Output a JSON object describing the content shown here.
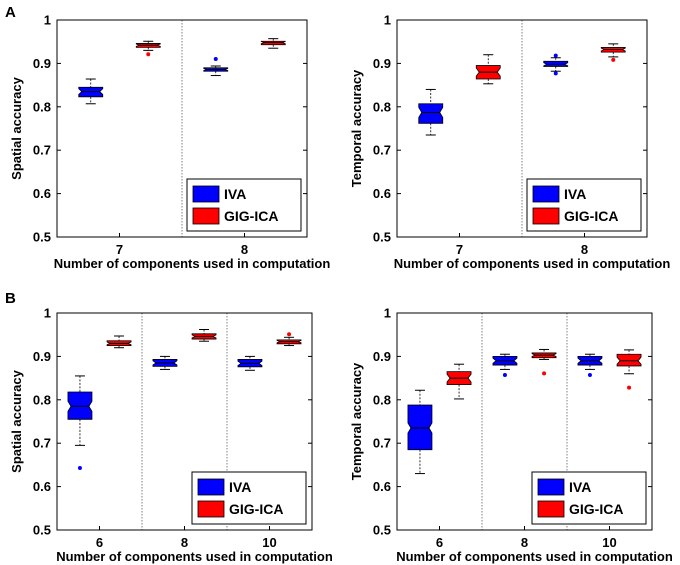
{
  "panel_labels": [
    "A",
    "B"
  ],
  "colors": {
    "IVA": "#0000ff",
    "GIG-ICA": "#ff0000",
    "axis": "#000000",
    "divider": "#7f7f7f"
  },
  "chart_data": [
    {
      "type": "boxplot",
      "panel": "A",
      "ylabel": "Spatial accuracy",
      "xlabel": "Number of components used in computation",
      "ylim": [
        0.5,
        1.0
      ],
      "yticks": [
        "0.5",
        "0.6",
        "0.7",
        "0.8",
        "0.9",
        "1"
      ],
      "categories": [
        "7",
        "8"
      ],
      "legend": {
        "entries": [
          "IVA",
          "GIG-ICA"
        ],
        "location": "bottom-right"
      },
      "series": [
        {
          "name": "IVA",
          "boxes": [
            {
              "whisker_low": 0.807,
              "q1": 0.823,
              "median": 0.835,
              "q3": 0.845,
              "whisker_high": 0.864,
              "outliers": []
            },
            {
              "whisker_low": 0.872,
              "q1": 0.882,
              "median": 0.886,
              "q3": 0.89,
              "whisker_high": 0.894,
              "outliers": [
                0.91
              ]
            }
          ]
        },
        {
          "name": "GIG-ICA",
          "boxes": [
            {
              "whisker_low": 0.93,
              "q1": 0.937,
              "median": 0.942,
              "q3": 0.946,
              "whisker_high": 0.951,
              "outliers": [
                0.921
              ]
            },
            {
              "whisker_low": 0.935,
              "q1": 0.943,
              "median": 0.948,
              "q3": 0.951,
              "whisker_high": 0.957,
              "outliers": []
            }
          ]
        }
      ]
    },
    {
      "type": "boxplot",
      "panel": "A",
      "ylabel": "Temporal accuracy",
      "xlabel": "Number of components used in computation",
      "ylim": [
        0.5,
        1.0
      ],
      "yticks": [
        "0.5",
        "0.6",
        "0.7",
        "0.8",
        "0.9",
        "1"
      ],
      "categories": [
        "7",
        "8"
      ],
      "legend": {
        "entries": [
          "IVA",
          "GIG-ICA"
        ],
        "location": "bottom-right"
      },
      "series": [
        {
          "name": "IVA",
          "boxes": [
            {
              "whisker_low": 0.735,
              "q1": 0.762,
              "median": 0.787,
              "q3": 0.807,
              "whisker_high": 0.84,
              "outliers": []
            },
            {
              "whisker_low": 0.882,
              "q1": 0.893,
              "median": 0.898,
              "q3": 0.905,
              "whisker_high": 0.913,
              "outliers": [
                0.877,
                0.918
              ]
            }
          ]
        },
        {
          "name": "GIG-ICA",
          "boxes": [
            {
              "whisker_low": 0.853,
              "q1": 0.864,
              "median": 0.88,
              "q3": 0.895,
              "whisker_high": 0.92,
              "outliers": []
            },
            {
              "whisker_low": 0.915,
              "q1": 0.926,
              "median": 0.932,
              "q3": 0.937,
              "whisker_high": 0.945,
              "outliers": [
                0.908
              ]
            }
          ]
        }
      ]
    },
    {
      "type": "boxplot",
      "panel": "B",
      "ylabel": "Spatial accuracy",
      "xlabel": "Number of components used in computation",
      "ylim": [
        0.5,
        1.0
      ],
      "yticks": [
        "0.5",
        "0.6",
        "0.7",
        "0.8",
        "0.9",
        "1"
      ],
      "categories": [
        "6",
        "8",
        "10"
      ],
      "legend": {
        "entries": [
          "IVA",
          "GIG-ICA"
        ],
        "location": "bottom-right"
      },
      "series": [
        {
          "name": "IVA",
          "boxes": [
            {
              "whisker_low": 0.695,
              "q1": 0.755,
              "median": 0.785,
              "q3": 0.818,
              "whisker_high": 0.855,
              "outliers": [
                0.643
              ]
            },
            {
              "whisker_low": 0.87,
              "q1": 0.877,
              "median": 0.885,
              "q3": 0.893,
              "whisker_high": 0.9,
              "outliers": []
            },
            {
              "whisker_low": 0.868,
              "q1": 0.876,
              "median": 0.884,
              "q3": 0.893,
              "whisker_high": 0.9,
              "outliers": []
            }
          ]
        },
        {
          "name": "GIG-ICA",
          "boxes": [
            {
              "whisker_low": 0.92,
              "q1": 0.925,
              "median": 0.93,
              "q3": 0.936,
              "whisker_high": 0.947,
              "outliers": []
            },
            {
              "whisker_low": 0.935,
              "q1": 0.94,
              "median": 0.946,
              "q3": 0.952,
              "whisker_high": 0.962,
              "outliers": []
            },
            {
              "whisker_low": 0.925,
              "q1": 0.929,
              "median": 0.934,
              "q3": 0.938,
              "whisker_high": 0.944,
              "outliers": [
                0.951
              ]
            }
          ]
        }
      ]
    },
    {
      "type": "boxplot",
      "panel": "B",
      "ylabel": "Temporal accuracy",
      "xlabel": "Number of components used in computation",
      "ylim": [
        0.5,
        1.0
      ],
      "yticks": [
        "0.5",
        "0.6",
        "0.7",
        "0.8",
        "0.9",
        "1"
      ],
      "categories": [
        "6",
        "8",
        "10"
      ],
      "legend": {
        "entries": [
          "IVA",
          "GIG-ICA"
        ],
        "location": "bottom-right"
      },
      "series": [
        {
          "name": "IVA",
          "boxes": [
            {
              "whisker_low": 0.63,
              "q1": 0.685,
              "median": 0.735,
              "q3": 0.788,
              "whisker_high": 0.822,
              "outliers": []
            },
            {
              "whisker_low": 0.87,
              "q1": 0.88,
              "median": 0.89,
              "q3": 0.9,
              "whisker_high": 0.905,
              "outliers": [
                0.857
              ]
            },
            {
              "whisker_low": 0.87,
              "q1": 0.88,
              "median": 0.89,
              "q3": 0.9,
              "whisker_high": 0.905,
              "outliers": [
                0.857
              ]
            }
          ]
        },
        {
          "name": "GIG-ICA",
          "boxes": [
            {
              "whisker_low": 0.802,
              "q1": 0.835,
              "median": 0.85,
              "q3": 0.865,
              "whisker_high": 0.882,
              "outliers": []
            },
            {
              "whisker_low": 0.893,
              "q1": 0.897,
              "median": 0.903,
              "q3": 0.908,
              "whisker_high": 0.916,
              "outliers": [
                0.861
              ]
            },
            {
              "whisker_low": 0.86,
              "q1": 0.878,
              "median": 0.89,
              "q3": 0.905,
              "whisker_high": 0.915,
              "outliers": [
                0.828
              ]
            }
          ]
        }
      ]
    }
  ]
}
